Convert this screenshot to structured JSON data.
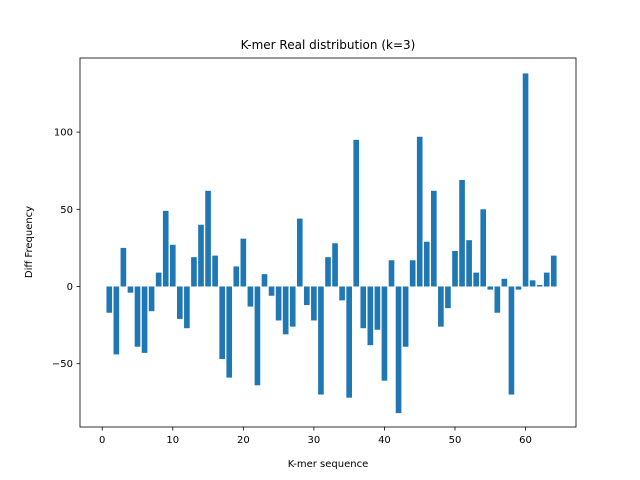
{
  "chart_data": {
    "type": "bar",
    "title": "K-mer Real distribution (k=3)",
    "xlabel": "K-mer sequence",
    "ylabel": "Diff Frequency",
    "xlim": [
      -3.15,
      67.15
    ],
    "ylim": [
      -91,
      148
    ],
    "xticks": [
      0,
      10,
      20,
      30,
      40,
      50,
      60
    ],
    "yticks": [
      -50,
      0,
      50,
      100
    ],
    "ytick_labels": [
      "−50",
      "0",
      "50",
      "100"
    ],
    "bar_color": "#1f77b4",
    "grid": false,
    "x": [
      1,
      2,
      3,
      4,
      5,
      6,
      7,
      8,
      9,
      10,
      11,
      12,
      13,
      14,
      15,
      16,
      17,
      18,
      19,
      20,
      21,
      22,
      23,
      24,
      25,
      26,
      27,
      28,
      29,
      30,
      31,
      32,
      33,
      34,
      35,
      36,
      37,
      38,
      39,
      40,
      41,
      42,
      43,
      44,
      45,
      46,
      47,
      48,
      49,
      50,
      51,
      52,
      53,
      54,
      55,
      56,
      57,
      58,
      59,
      60,
      61,
      62,
      63,
      64
    ],
    "values": [
      -17,
      -44,
      25,
      -4,
      -39,
      -43,
      -16,
      9,
      49,
      27,
      -21,
      -27,
      19,
      40,
      62,
      20,
      -47,
      -59,
      13,
      31,
      -13,
      -64,
      8,
      -6,
      -22,
      -31,
      -26,
      44,
      -12,
      -22,
      -70,
      19,
      28,
      -9,
      -72,
      95,
      -27,
      -38,
      -28,
      -61,
      17,
      -82,
      -39,
      17,
      97,
      29,
      62,
      -26,
      -14,
      23,
      69,
      30,
      9,
      50,
      -2,
      -17,
      5,
      -70,
      -2,
      138,
      4,
      1,
      9,
      20
    ]
  }
}
